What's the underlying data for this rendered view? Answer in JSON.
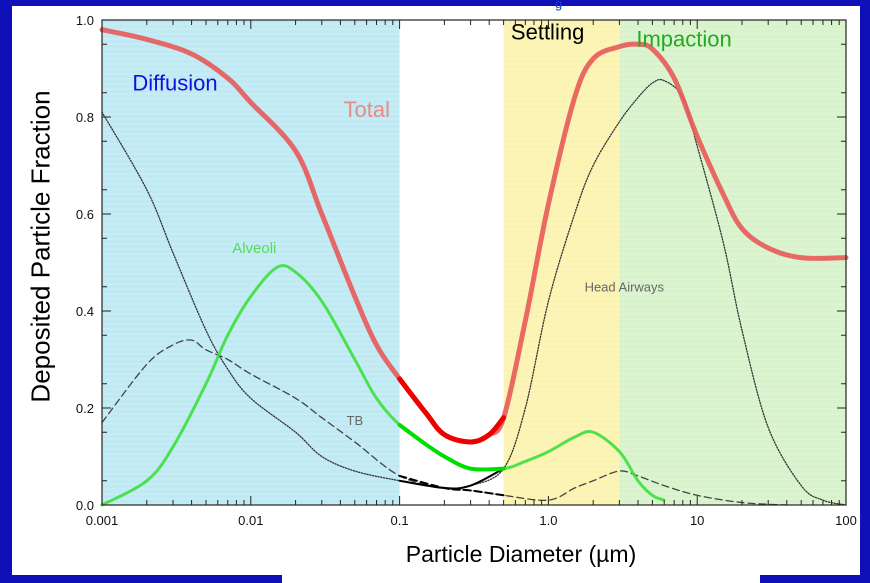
{
  "caption": "g",
  "chart_data": {
    "type": "line",
    "xscale": "log",
    "xlim": [
      0.001,
      100
    ],
    "ylim": [
      0.0,
      1.0
    ],
    "x_ticks": [
      "0.001",
      "0.01",
      "0.1",
      "1.0",
      "10",
      "100"
    ],
    "y_ticks": [
      "0.0",
      "0.2",
      "0.4",
      "0.6",
      "0.8",
      "1.0"
    ],
    "xlabel": "Particle Diameter (µm)",
    "ylabel": "Deposited Particle Fraction",
    "regions": [
      {
        "name": "Diffusion",
        "x_range": [
          0.001,
          0.1
        ],
        "color": "#bfe9f3",
        "label_color": "#1010e0"
      },
      {
        "name": "Settling",
        "x_range": [
          0.5,
          3.0
        ],
        "color": "#fbf3b0",
        "label_color": "#000000"
      },
      {
        "name": "Impaction",
        "x_range": [
          3.0,
          100
        ],
        "color": "#d8f3cc",
        "label_color": "#22aa22"
      }
    ],
    "series": [
      {
        "name": "Total",
        "color": "#e85a5a",
        "style": "thick",
        "points": [
          [
            0.001,
            0.98
          ],
          [
            0.002,
            0.96
          ],
          [
            0.004,
            0.93
          ],
          [
            0.007,
            0.88
          ],
          [
            0.01,
            0.83
          ],
          [
            0.02,
            0.73
          ],
          [
            0.03,
            0.6
          ],
          [
            0.05,
            0.43
          ],
          [
            0.07,
            0.33
          ],
          [
            0.1,
            0.26
          ],
          [
            0.15,
            0.19
          ],
          [
            0.2,
            0.145
          ],
          [
            0.3,
            0.13
          ],
          [
            0.4,
            0.145
          ],
          [
            0.5,
            0.18
          ],
          [
            0.7,
            0.38
          ],
          [
            1.0,
            0.62
          ],
          [
            1.5,
            0.84
          ],
          [
            2,
            0.92
          ],
          [
            3,
            0.945
          ],
          [
            4,
            0.95
          ],
          [
            5,
            0.94
          ],
          [
            7,
            0.88
          ],
          [
            10,
            0.76
          ],
          [
            15,
            0.64
          ],
          [
            20,
            0.57
          ],
          [
            30,
            0.53
          ],
          [
            50,
            0.51
          ],
          [
            100,
            0.51
          ]
        ]
      },
      {
        "name": "Alveoli",
        "color": "#3ce03c",
        "style": "medium",
        "points": [
          [
            0.001,
            0.0
          ],
          [
            0.002,
            0.05
          ],
          [
            0.003,
            0.12
          ],
          [
            0.005,
            0.25
          ],
          [
            0.007,
            0.35
          ],
          [
            0.01,
            0.43
          ],
          [
            0.015,
            0.49
          ],
          [
            0.02,
            0.48
          ],
          [
            0.03,
            0.42
          ],
          [
            0.05,
            0.3
          ],
          [
            0.07,
            0.22
          ],
          [
            0.1,
            0.165
          ],
          [
            0.15,
            0.125
          ],
          [
            0.2,
            0.1
          ],
          [
            0.3,
            0.075
          ],
          [
            0.5,
            0.075
          ],
          [
            0.7,
            0.09
          ],
          [
            1.0,
            0.11
          ],
          [
            1.5,
            0.14
          ],
          [
            2,
            0.15
          ],
          [
            3,
            0.11
          ],
          [
            4,
            0.05
          ],
          [
            5,
            0.02
          ],
          [
            6,
            0.01
          ]
        ]
      },
      {
        "name": "Head Airways",
        "color": "#333333",
        "style": "dotted",
        "points": [
          [
            0.001,
            0.81
          ],
          [
            0.002,
            0.65
          ],
          [
            0.003,
            0.52
          ],
          [
            0.005,
            0.36
          ],
          [
            0.007,
            0.28
          ],
          [
            0.01,
            0.22
          ],
          [
            0.02,
            0.15
          ],
          [
            0.03,
            0.1
          ],
          [
            0.05,
            0.07
          ],
          [
            0.1,
            0.05
          ],
          [
            0.2,
            0.035
          ],
          [
            0.3,
            0.04
          ],
          [
            0.5,
            0.075
          ],
          [
            0.7,
            0.2
          ],
          [
            1.0,
            0.42
          ],
          [
            1.5,
            0.6
          ],
          [
            2,
            0.7
          ],
          [
            3,
            0.79
          ],
          [
            4,
            0.84
          ],
          [
            5,
            0.87
          ],
          [
            6,
            0.875
          ],
          [
            8,
            0.84
          ],
          [
            10,
            0.74
          ],
          [
            15,
            0.54
          ],
          [
            20,
            0.36
          ],
          [
            30,
            0.16
          ],
          [
            50,
            0.04
          ],
          [
            70,
            0.01
          ],
          [
            100,
            0.0
          ]
        ]
      },
      {
        "name": "TB",
        "color": "#444444",
        "style": "dashed",
        "points": [
          [
            0.001,
            0.17
          ],
          [
            0.002,
            0.29
          ],
          [
            0.003,
            0.33
          ],
          [
            0.004,
            0.34
          ],
          [
            0.005,
            0.32
          ],
          [
            0.007,
            0.3
          ],
          [
            0.01,
            0.27
          ],
          [
            0.02,
            0.22
          ],
          [
            0.03,
            0.18
          ],
          [
            0.05,
            0.13
          ],
          [
            0.1,
            0.06
          ],
          [
            0.2,
            0.035
          ],
          [
            0.3,
            0.03
          ],
          [
            0.5,
            0.02
          ],
          [
            1.0,
            0.01
          ],
          [
            1.5,
            0.035
          ],
          [
            2,
            0.05
          ],
          [
            3,
            0.07
          ],
          [
            4,
            0.06
          ],
          [
            6,
            0.04
          ],
          [
            10,
            0.02
          ],
          [
            20,
            0.005
          ],
          [
            40,
            0.0
          ]
        ]
      }
    ],
    "annotations": {
      "total": "Total",
      "alveoli": "Alveoli",
      "head_airways": "Head Airways",
      "tb": "TB"
    }
  }
}
